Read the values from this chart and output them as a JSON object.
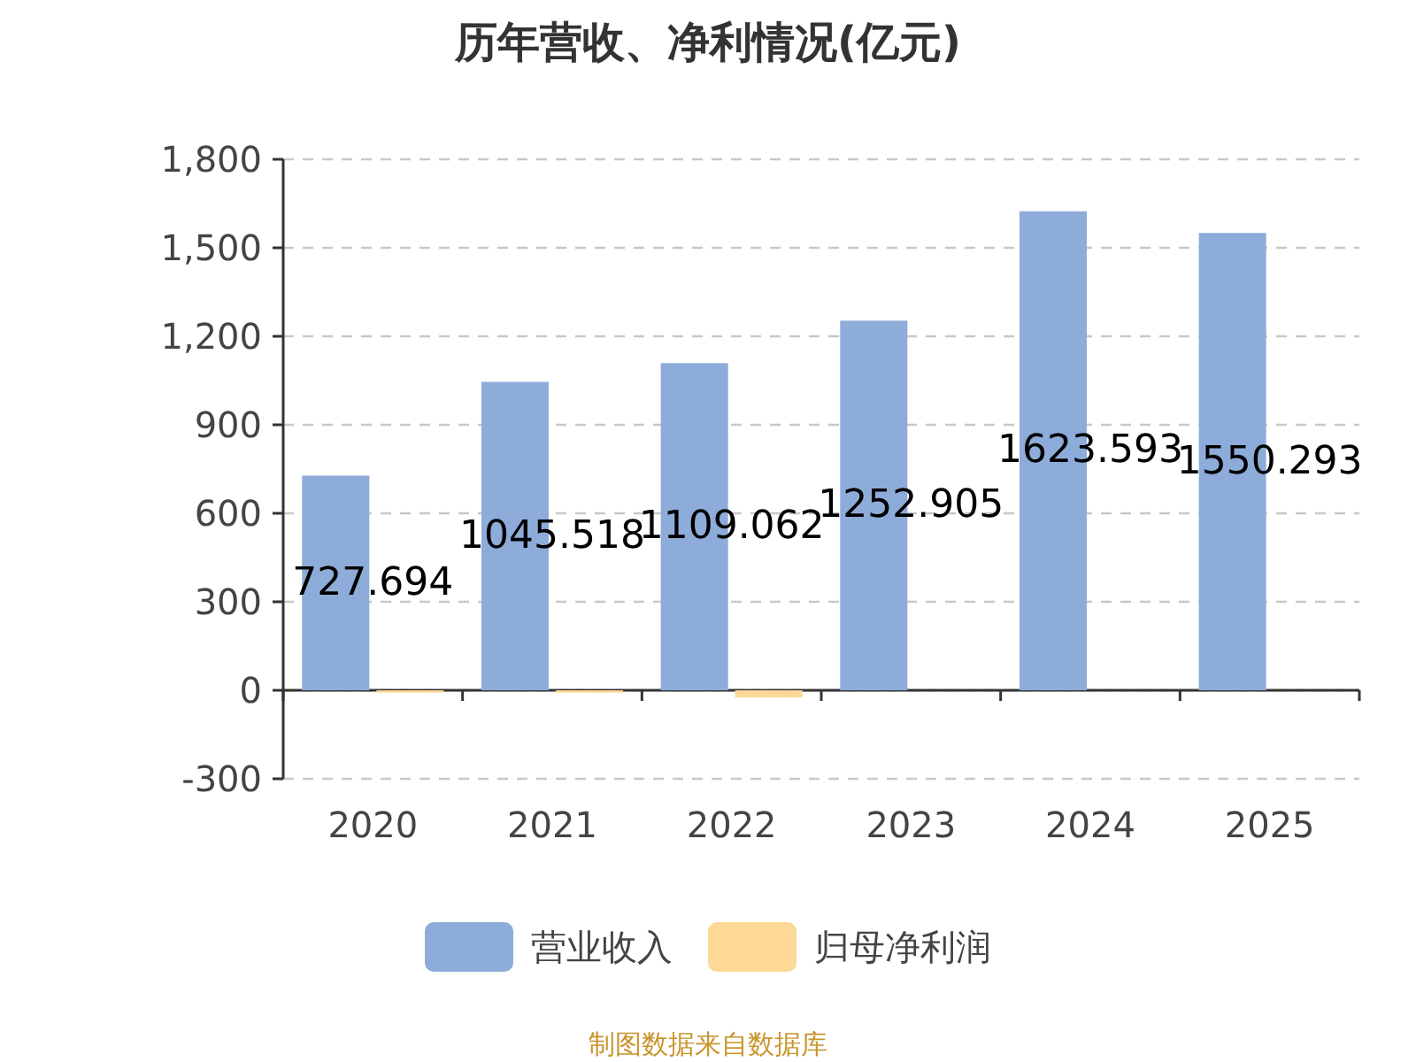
{
  "chart_data": {
    "type": "bar",
    "title": "历年营收、净利情况(亿元)",
    "categories": [
      "2020",
      "2021",
      "2022",
      "2023",
      "2024",
      "2025"
    ],
    "series": [
      {
        "name": "营业收入",
        "color": "#8eacd9",
        "values": [
          727.694,
          1045.518,
          1109.062,
          1252.905,
          1623.593,
          1550.293
        ],
        "value_labels": [
          "727.694",
          "1045.518",
          "1109.062",
          "1252.905",
          "1623.593",
          "1550.293"
        ]
      },
      {
        "name": "归母净利润",
        "color": "#fdd896",
        "values": [
          -8,
          -8,
          -24,
          null,
          null,
          null
        ]
      }
    ],
    "ylim": [
      -300,
      1800
    ],
    "yticks": [
      -300,
      0,
      {
        "value": 300,
        "label": "300"
      },
      {
        "value": 600,
        "label": "600"
      },
      {
        "value": 900,
        "label": "900"
      },
      {
        "value": 1200,
        "label": "1,200"
      },
      {
        "value": 1500,
        "label": "1,500"
      },
      {
        "value": 1800,
        "label": "1,800"
      }
    ],
    "grid": "y",
    "legend": "bottom",
    "annotations": [
      "制图数据来自数据库"
    ]
  }
}
